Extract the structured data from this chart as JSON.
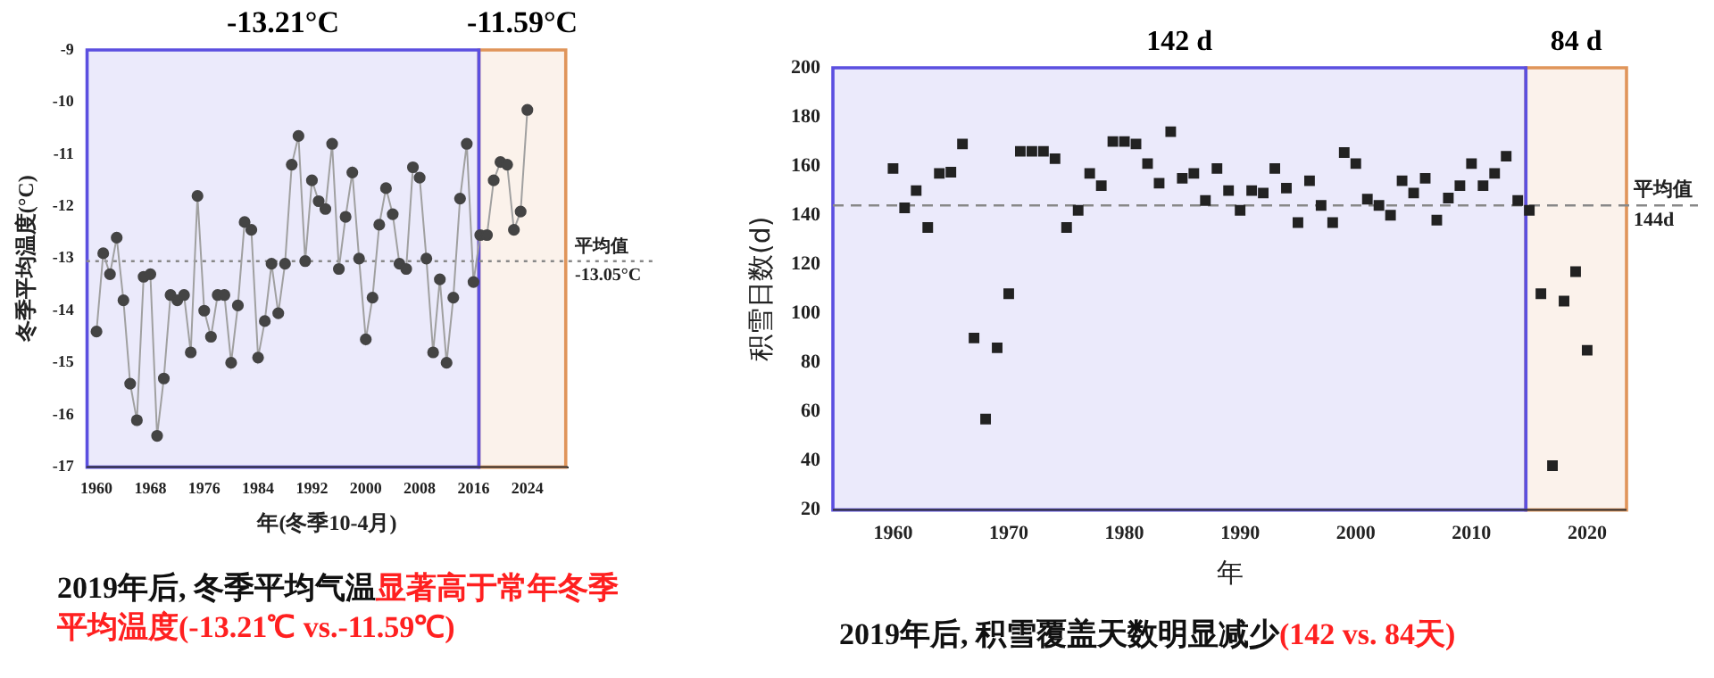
{
  "chart_data": [
    {
      "type": "line",
      "xlabel": "年(冬季10-4月)",
      "ylabel": "冬季平均温度(°C)",
      "x": [
        1960,
        1961,
        1962,
        1963,
        1964,
        1965,
        1966,
        1967,
        1968,
        1969,
        1970,
        1971,
        1972,
        1973,
        1974,
        1975,
        1976,
        1977,
        1978,
        1979,
        1980,
        1981,
        1982,
        1983,
        1984,
        1985,
        1986,
        1987,
        1988,
        1989,
        1990,
        1991,
        1992,
        1993,
        1994,
        1995,
        1996,
        1997,
        1998,
        1999,
        2000,
        2001,
        2002,
        2003,
        2004,
        2005,
        2006,
        2007,
        2008,
        2009,
        2010,
        2011,
        2012,
        2013,
        2014,
        2015,
        2016,
        2017,
        2018,
        2019,
        2020,
        2021,
        2022,
        2023,
        2024
      ],
      "series": [
        {
          "color": "#444444",
          "values": [
            -14.4,
            -12.9,
            -13.3,
            -12.6,
            -13.8,
            -15.4,
            -16.1,
            -13.35,
            -13.3,
            -16.4,
            -15.3,
            -13.7,
            -13.8,
            -13.7,
            -14.8,
            -11.8,
            -14.0,
            -14.5,
            -13.7,
            -13.7,
            -15.0,
            -13.9,
            -12.3,
            -12.45,
            -14.9,
            -14.2,
            -13.1,
            -14.05,
            -13.1,
            -11.2,
            -10.65,
            -13.05,
            -11.5,
            -11.9,
            -12.05,
            -10.8,
            -13.2,
            -12.2,
            -11.35,
            -13.0,
            -14.55,
            -13.75,
            -12.35,
            -11.65,
            -12.15,
            -13.1,
            -13.2,
            -11.25,
            -11.45,
            -13.0,
            -14.8,
            -13.4,
            -15.0,
            -13.75,
            -11.85,
            -10.8,
            -13.45,
            -12.55,
            -12.55,
            -11.5,
            -11.15,
            -11.2,
            -12.45,
            -12.1,
            -10.15
          ]
        }
      ],
      "xlim": [
        1958.5,
        2030
      ],
      "xticks": [
        1960,
        1968,
        1976,
        1984,
        1992,
        2000,
        2008,
        2016,
        2024
      ],
      "ylim": [
        -17,
        -9
      ],
      "yticks": [
        -17,
        -16,
        -15,
        -14,
        -13,
        -12,
        -11,
        -10,
        -9
      ],
      "marker": "circle",
      "grid": false,
      "legend": false,
      "ref_lines": [
        {
          "axis": "y",
          "value": -13.05,
          "label": "平均值\n-13.05°C",
          "color": "#888888",
          "line_style": "dotted"
        }
      ],
      "bands": [
        {
          "axis": "x",
          "from": 1958.6,
          "to": 2016.8,
          "label": "-13.21°C",
          "color": "#5b4fe0"
        },
        {
          "axis": "x",
          "from": 2016.8,
          "to": 2029.7,
          "label": "-11.59°C",
          "color": "#e0955a"
        }
      ],
      "annotations": [
        "2019年后, 冬季平均气温",
        "显著高于常年冬季平均温度(-13.21℃ vs.-11.59℃)"
      ]
    },
    {
      "type": "scatter",
      "xlabel": "年",
      "ylabel": "积雪日数(d)",
      "x": [
        1960,
        1961,
        1962,
        1963,
        1964,
        1965,
        1966,
        1967,
        1968,
        1969,
        1970,
        1971,
        1972,
        1973,
        1974,
        1975,
        1976,
        1977,
        1978,
        1979,
        1980,
        1981,
        1982,
        1983,
        1984,
        1985,
        1986,
        1987,
        1988,
        1989,
        1990,
        1991,
        1992,
        1993,
        1994,
        1995,
        1996,
        1997,
        1998,
        1999,
        2000,
        2001,
        2002,
        2003,
        2004,
        2005,
        2006,
        2007,
        2008,
        2009,
        2010,
        2011,
        2012,
        2013,
        2014,
        2015,
        2016,
        2017,
        2018,
        2019,
        2020
      ],
      "series": [
        {
          "color": "#222222",
          "values": [
            159,
            143,
            150,
            135,
            157,
            157.5,
            169,
            90,
            57,
            86,
            108,
            166,
            166,
            166,
            163,
            135,
            142,
            157,
            152,
            170,
            170,
            169,
            161,
            153,
            174,
            155,
            157,
            146,
            159,
            150,
            142,
            150,
            149,
            159,
            151,
            137,
            154,
            144,
            137,
            165.5,
            161,
            146.5,
            144,
            140,
            154,
            149,
            155,
            138,
            147,
            152,
            161,
            152,
            157,
            164,
            146,
            142,
            108,
            38,
            105,
            117,
            85
          ]
        }
      ],
      "xlim": [
        1954.8,
        2023.4
      ],
      "xticks": [
        1960,
        1970,
        1980,
        1990,
        2000,
        2010,
        2020
      ],
      "ylim": [
        20,
        200
      ],
      "yticks": [
        20,
        40,
        60,
        80,
        100,
        120,
        140,
        160,
        180,
        200
      ],
      "marker": "square",
      "grid": false,
      "legend": false,
      "ref_lines": [
        {
          "axis": "y",
          "value": 144,
          "label": "平均值\n144d",
          "color": "#888888",
          "line_style": "dashed"
        }
      ],
      "bands": [
        {
          "axis": "x",
          "from": 1954.8,
          "to": 2014.7,
          "label": "142 d",
          "color": "#5b4fe0"
        },
        {
          "axis": "x",
          "from": 2014.7,
          "to": 2023.4,
          "label": "84 d",
          "color": "#e0955a"
        }
      ],
      "annotations": [
        "2019年后, 积雪覆盖天数明显减少",
        "(142 vs. 84天)"
      ]
    }
  ]
}
